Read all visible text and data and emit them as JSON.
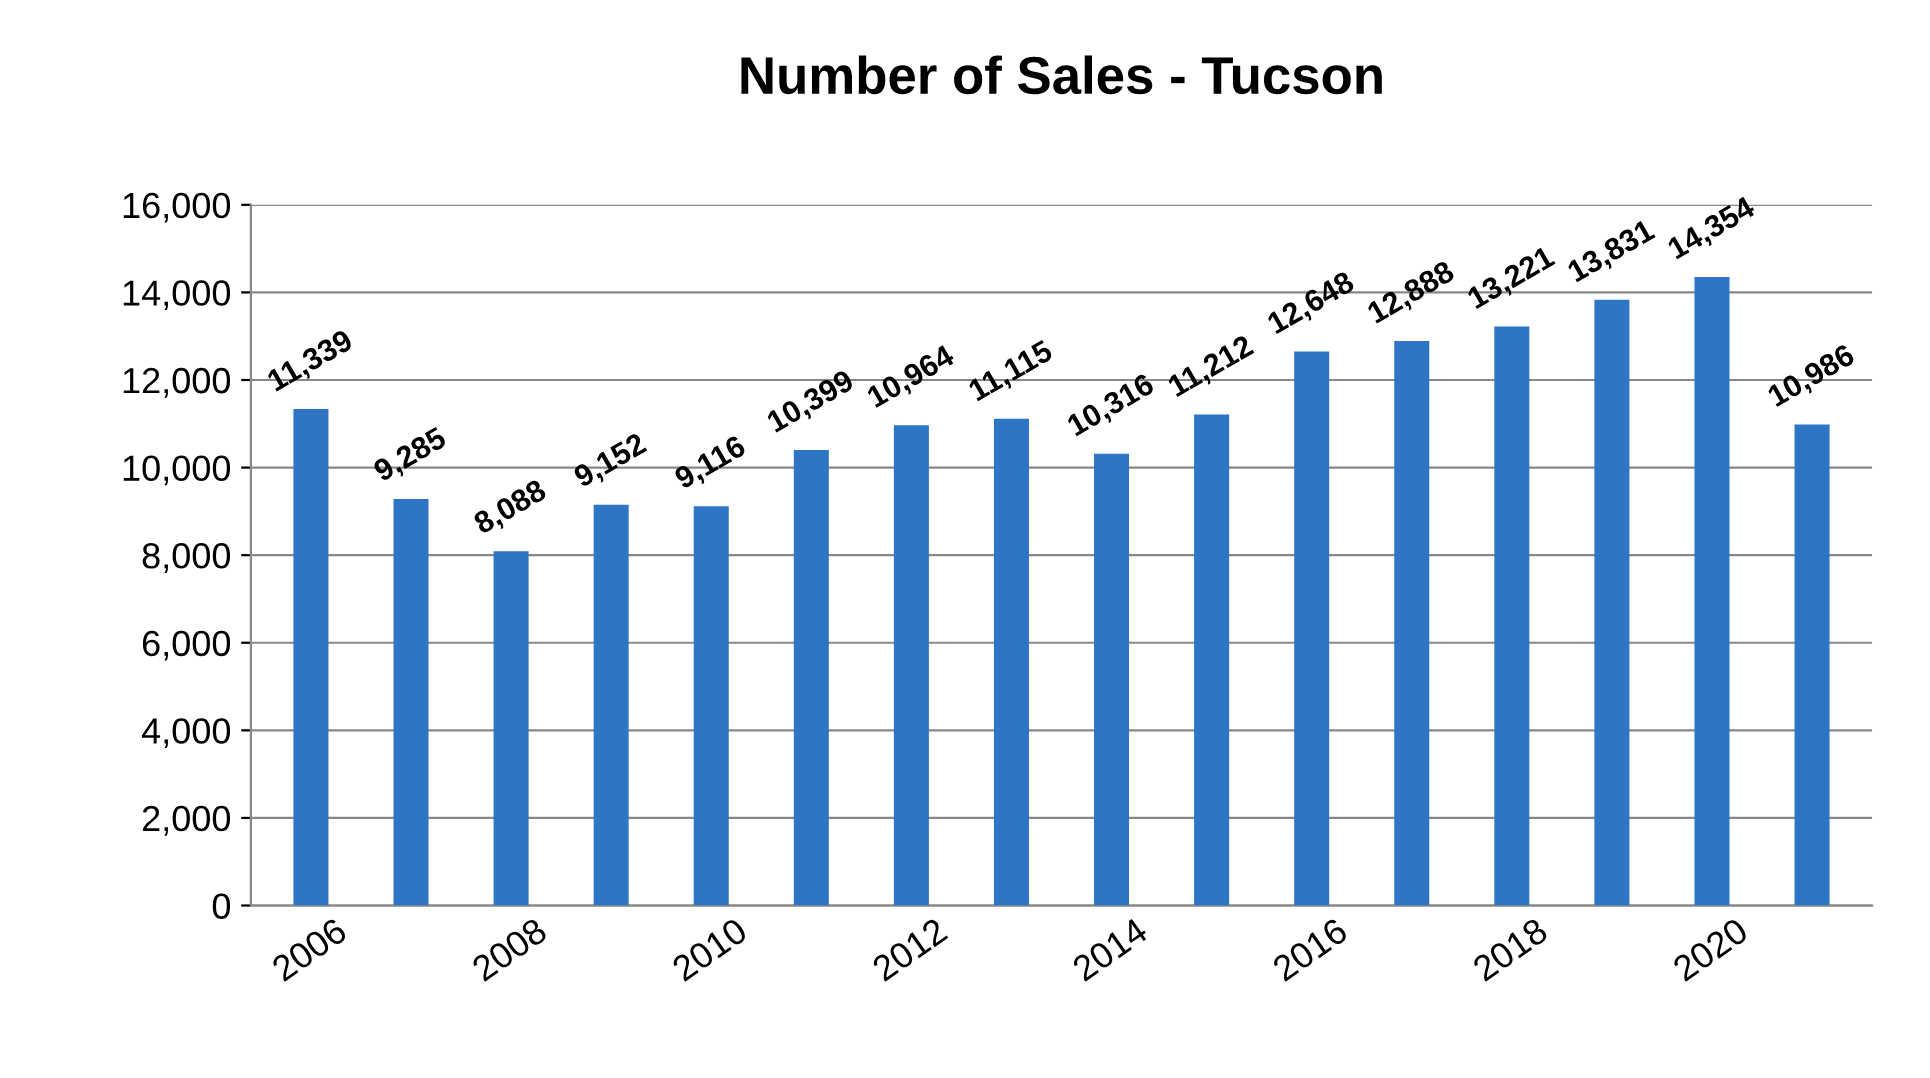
{
  "chart_data": {
    "type": "bar",
    "title": "Number of Sales - Tucson",
    "categories": [
      "2006",
      null,
      "2008",
      null,
      "2010",
      null,
      "2012",
      null,
      "2014",
      null,
      "2016",
      null,
      "2018",
      null,
      "2020",
      null
    ],
    "values": [
      11339,
      9285,
      8088,
      9152,
      9116,
      10399,
      10964,
      11115,
      10316,
      11212,
      12648,
      12888,
      13221,
      13831,
      14354,
      10986
    ],
    "value_labels": [
      "11,339",
      "9,285",
      "8,088",
      "9,152",
      "9,116",
      "10,399",
      "10,964",
      "11,115",
      "10,316",
      "11,212",
      "12,648",
      "12,888",
      "13,221",
      "13,831",
      "14,354",
      "10,986"
    ],
    "color": "#2e75c6",
    "ylim": [
      0,
      16000
    ],
    "yticks": [
      0,
      {
        "value": 2000,
        "label": "2,000"
      },
      {
        "value": 4000,
        "label": "4,000"
      },
      {
        "value": 6000,
        "label": "6,000"
      },
      {
        "value": 8000,
        "label": "8,000"
      },
      {
        "value": 10000,
        "label": "10,000"
      },
      {
        "value": 12000,
        "label": "12,000"
      },
      {
        "value": 14000,
        "label": "14,000"
      },
      {
        "value": 16000,
        "label": "16,000"
      }
    ],
    "grid": "y",
    "legend": false
  }
}
